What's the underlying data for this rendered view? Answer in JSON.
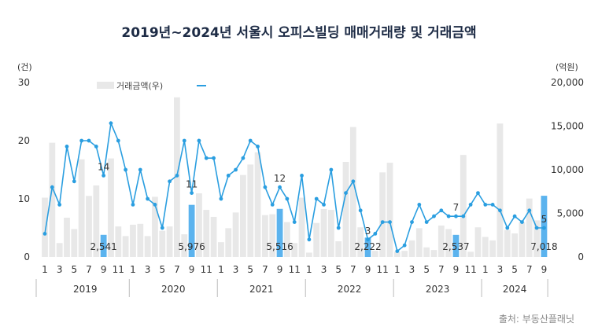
{
  "title": "2019년~2024년 서울시 오피스빌딩 매매거래량 및 거래금액",
  "source": "출처: 부동산플래닛",
  "colors": {
    "bar": "#e8e8e8",
    "bar_highlight": "#5bb3ee",
    "line": "#2a9ee0",
    "marker": "#2a9ee0"
  },
  "chart_data": {
    "type": "bar+line",
    "title": "2019년~2024년 서울시 오피스빌딩 매매거래량 및 거래금액",
    "y_left": {
      "unit": "(건)",
      "ticks": [
        0,
        10,
        20,
        30
      ],
      "ylim": [
        0,
        30
      ]
    },
    "y_right": {
      "unit": "(억원)",
      "ticks": [
        "0",
        "5,000",
        "10,000",
        "15,000",
        "20,000"
      ],
      "ylim": [
        0,
        20000
      ]
    },
    "x_tick_labels": [
      "1",
      "3",
      "5",
      "7",
      "9",
      "11",
      "1",
      "3",
      "5",
      "7",
      "9",
      "11",
      "1",
      "3",
      "5",
      "7",
      "9",
      "11",
      "1",
      "3",
      "5",
      "7",
      "9",
      "11",
      "1",
      "3",
      "5",
      "7",
      "9",
      "11",
      "1",
      "3",
      "5",
      "7",
      "9"
    ],
    "years": [
      "2019",
      "2020",
      "2021",
      "2022",
      "2023",
      "2024"
    ],
    "legend": [
      {
        "label": "거래금액(우)",
        "kind": "bar"
      },
      {
        "label": "",
        "kind": "line"
      }
    ],
    "months": [
      "2019-01",
      "2019-02",
      "2019-03",
      "2019-04",
      "2019-05",
      "2019-06",
      "2019-07",
      "2019-08",
      "2019-09",
      "2019-10",
      "2019-11",
      "2019-12",
      "2020-01",
      "2020-02",
      "2020-03",
      "2020-04",
      "2020-05",
      "2020-06",
      "2020-07",
      "2020-08",
      "2020-09",
      "2020-10",
      "2020-11",
      "2020-12",
      "2021-01",
      "2021-02",
      "2021-03",
      "2021-04",
      "2021-05",
      "2021-06",
      "2021-07",
      "2021-08",
      "2021-09",
      "2021-10",
      "2021-11",
      "2021-12",
      "2022-01",
      "2022-02",
      "2022-03",
      "2022-04",
      "2022-05",
      "2022-06",
      "2022-07",
      "2022-08",
      "2022-09",
      "2022-10",
      "2022-11",
      "2022-12",
      "2023-01",
      "2023-02",
      "2023-03",
      "2023-04",
      "2023-05",
      "2023-06",
      "2023-07",
      "2023-08",
      "2023-09",
      "2023-10",
      "2023-11",
      "2023-12",
      "2024-01",
      "2024-02",
      "2024-03",
      "2024-04",
      "2024-05",
      "2024-06",
      "2024-07",
      "2024-08",
      "2024-09"
    ],
    "series": [
      {
        "name": "거래금액(우)",
        "type": "bar",
        "axis": "right",
        "values": [
          6800,
          13100,
          1600,
          4500,
          3200,
          11200,
          7000,
          8200,
          2541,
          11300,
          3500,
          2400,
          3700,
          3800,
          2400,
          6900,
          3000,
          3500,
          18300,
          2600,
          5976,
          7300,
          5400,
          4600,
          1700,
          3300,
          5100,
          9400,
          10600,
          12000,
          4800,
          4900,
          5516,
          4000,
          1600,
          6800,
          500,
          3900,
          5500,
          5400,
          1800,
          10900,
          14900,
          3400,
          2222,
          700,
          9700,
          10800,
          600,
          700,
          1900,
          3300,
          1100,
          800,
          3600,
          3200,
          2537,
          11700,
          600,
          3400,
          2300,
          1900,
          15300,
          3100,
          2700,
          4000,
          6700,
          4200,
          7018
        ],
        "labels": [
          {
            "month": "2019-09",
            "text": "2,541"
          },
          {
            "month": "2020-09",
            "text": "5,976"
          },
          {
            "month": "2021-09",
            "text": "5,516"
          },
          {
            "month": "2022-09",
            "text": "2,222"
          },
          {
            "month": "2023-09",
            "text": "2,537"
          },
          {
            "month": "2024-09",
            "text": "7,018"
          }
        ]
      },
      {
        "name": "",
        "type": "line",
        "axis": "left",
        "values": [
          4,
          12,
          9,
          19,
          13,
          20,
          20,
          19,
          14,
          23,
          20,
          15,
          9,
          15,
          10,
          9,
          5,
          13,
          14,
          20,
          11,
          20,
          17,
          17,
          10,
          14,
          15,
          17,
          20,
          19,
          12,
          9,
          12,
          10,
          6,
          14,
          3,
          10,
          9,
          15,
          5,
          11,
          13,
          8,
          3,
          4,
          6,
          6,
          1,
          2,
          6,
          9,
          6,
          7,
          8,
          7,
          7,
          7,
          9,
          11,
          9,
          9,
          8,
          5,
          7,
          6,
          8,
          5,
          5
        ],
        "labels": [
          {
            "month": "2019-09",
            "text": "14"
          },
          {
            "month": "2020-09",
            "text": "11"
          },
          {
            "month": "2021-09",
            "text": "12"
          },
          {
            "month": "2022-09",
            "text": "3"
          },
          {
            "month": "2023-09",
            "text": "7"
          },
          {
            "month": "2024-09",
            "text": "5"
          }
        ]
      }
    ],
    "grid": false
  }
}
